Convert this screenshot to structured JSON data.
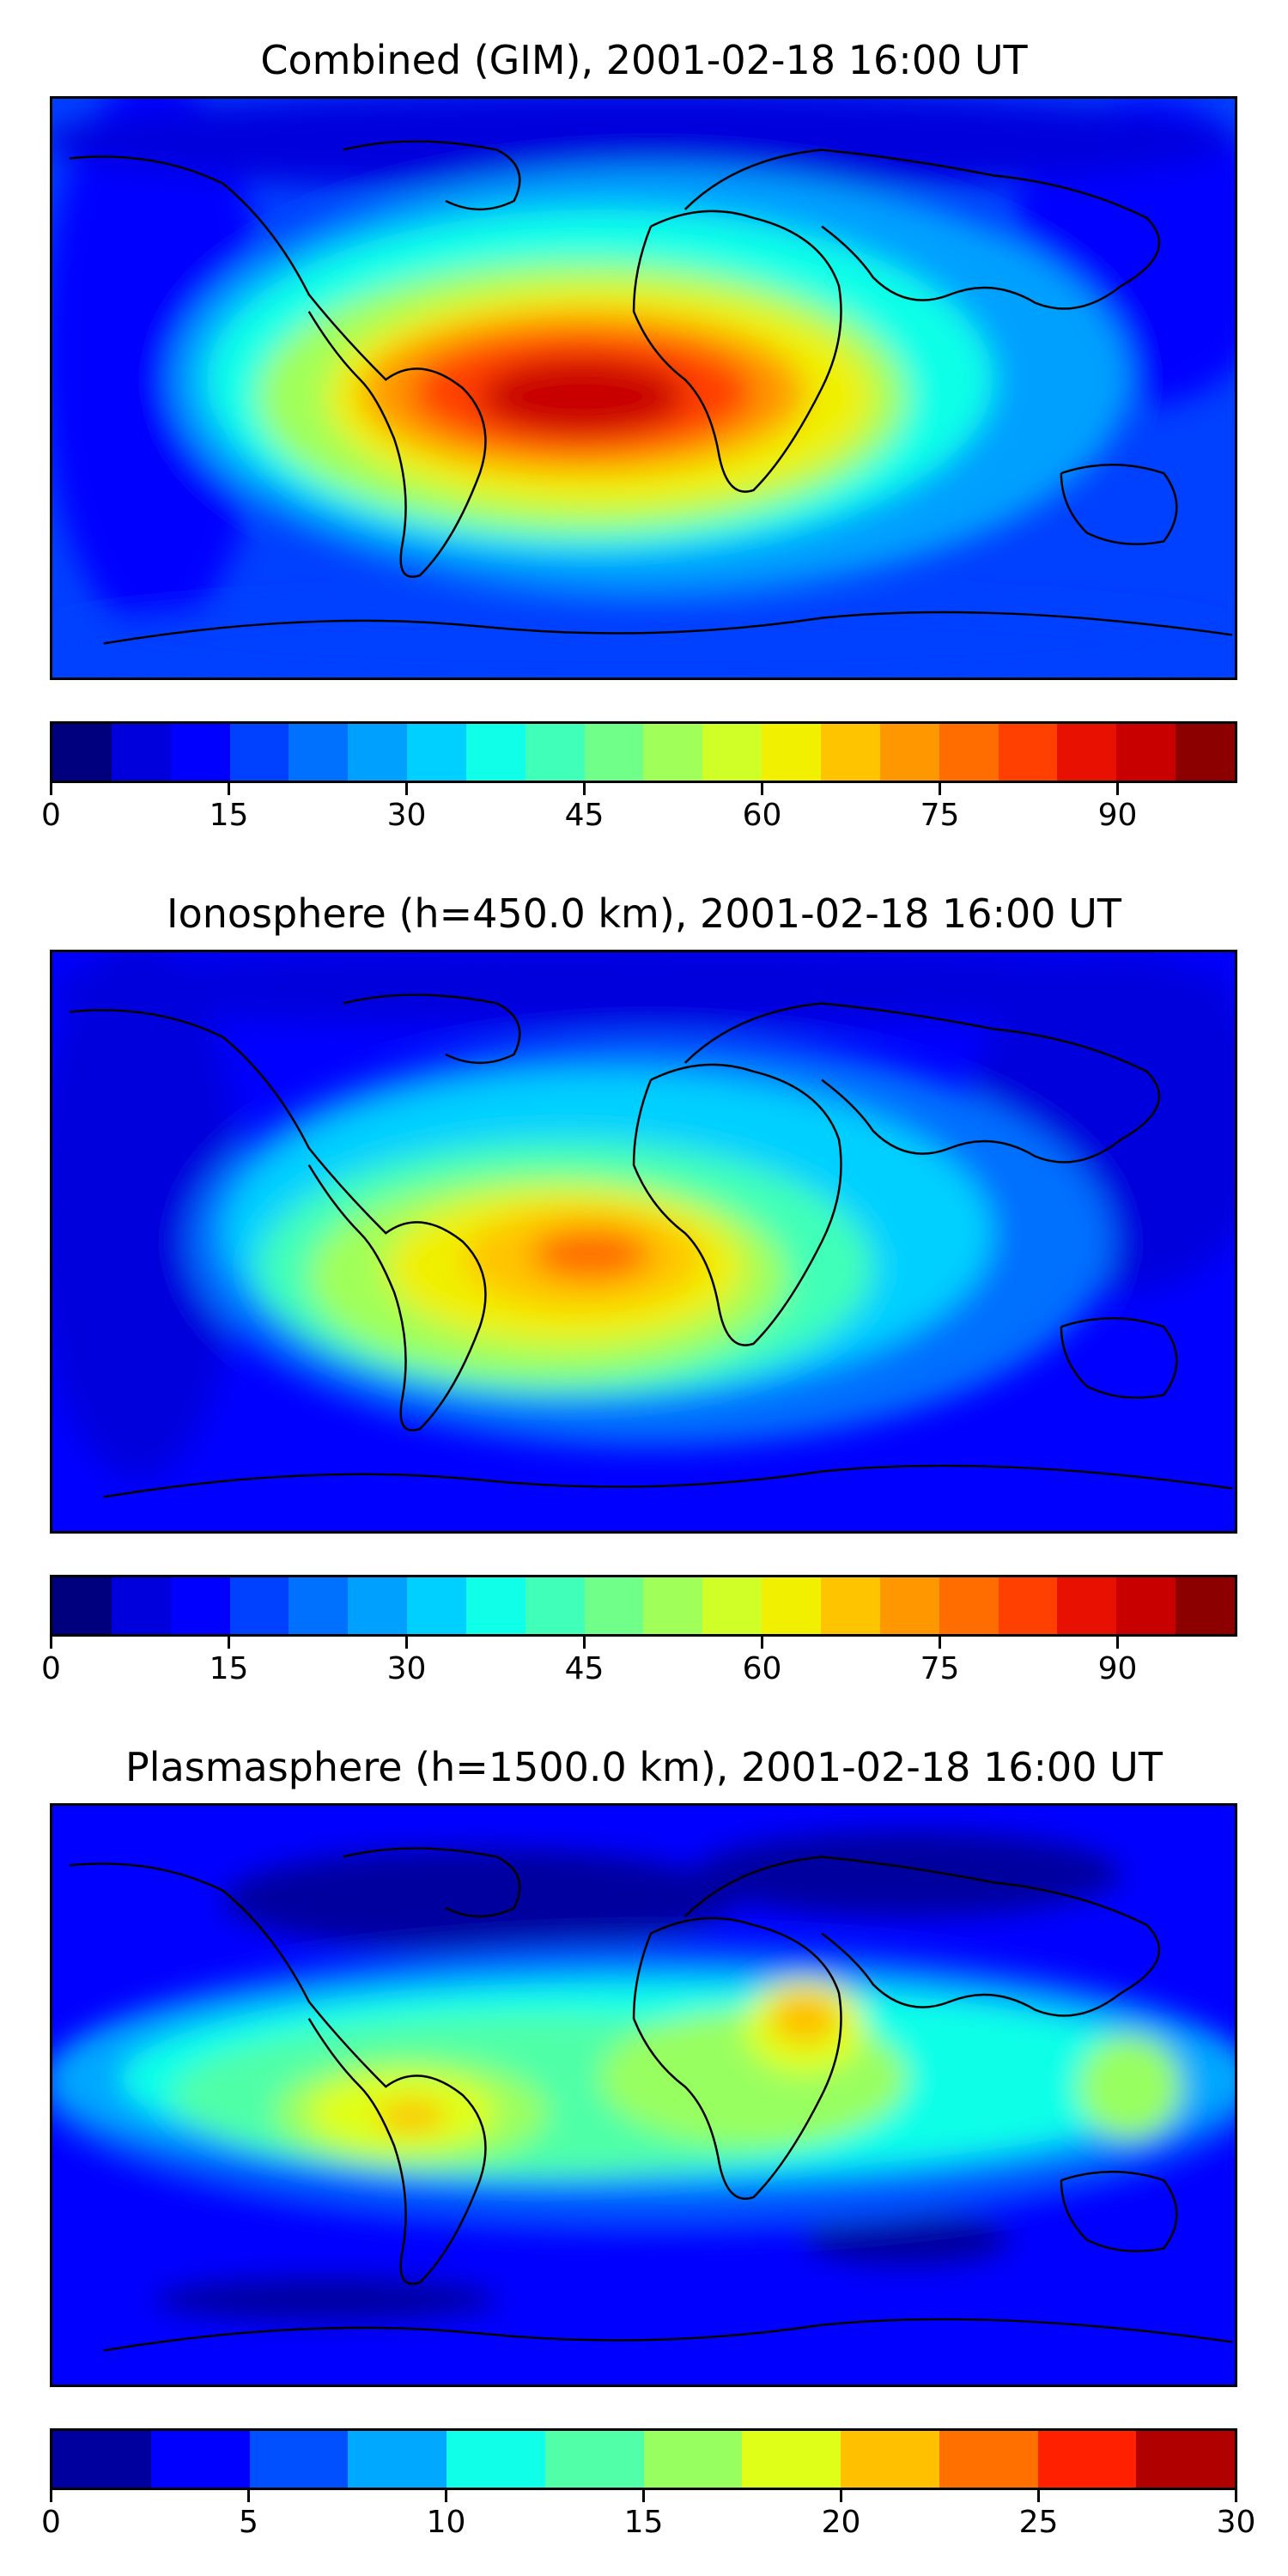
{
  "panels": [
    {
      "title": "Combined (GIM), 2001-02-18 16:00 UT",
      "colorbar": {
        "min": 0,
        "max": 100,
        "levels": 20,
        "ticks": [
          "0",
          "15",
          "30",
          "45",
          "60",
          "75",
          "90"
        ],
        "tick_values": [
          0,
          15,
          30,
          45,
          60,
          75,
          90
        ]
      }
    },
    {
      "title": "Ionosphere  (h=450.0 km), 2001-02-18 16:00 UT",
      "colorbar": {
        "min": 0,
        "max": 100,
        "levels": 20,
        "ticks": [
          "0",
          "15",
          "30",
          "45",
          "60",
          "75",
          "90"
        ],
        "tick_values": [
          0,
          15,
          30,
          45,
          60,
          75,
          90
        ]
      }
    },
    {
      "title": "Plasmasphere (h=1500.0 km), 2001-02-18 16:00 UT",
      "colorbar": {
        "min": 0,
        "max": 30,
        "levels": 12,
        "ticks": [
          "0",
          "5",
          "10",
          "15",
          "20",
          "25",
          "30"
        ],
        "tick_values": [
          0,
          5,
          10,
          15,
          20,
          25,
          30
        ]
      }
    }
  ],
  "colormap": [
    "#00007f",
    "#0000dd",
    "#0000ff",
    "#0040ff",
    "#0070ff",
    "#00a0ff",
    "#00d0ff",
    "#10ffe8",
    "#40ffb8",
    "#70ff88",
    "#a0ff58",
    "#d0ff28",
    "#f0f000",
    "#ffc400",
    "#ff9800",
    "#ff6c00",
    "#ff4000",
    "#e81000",
    "#c80000",
    "#8c0000"
  ],
  "colormap12": [
    "#00009f",
    "#0000ff",
    "#0050ff",
    "#00a8ff",
    "#10ffe8",
    "#50ffa8",
    "#98ff60",
    "#e0ff18",
    "#ffc000",
    "#ff7000",
    "#ff2000",
    "#b00000"
  ]
}
